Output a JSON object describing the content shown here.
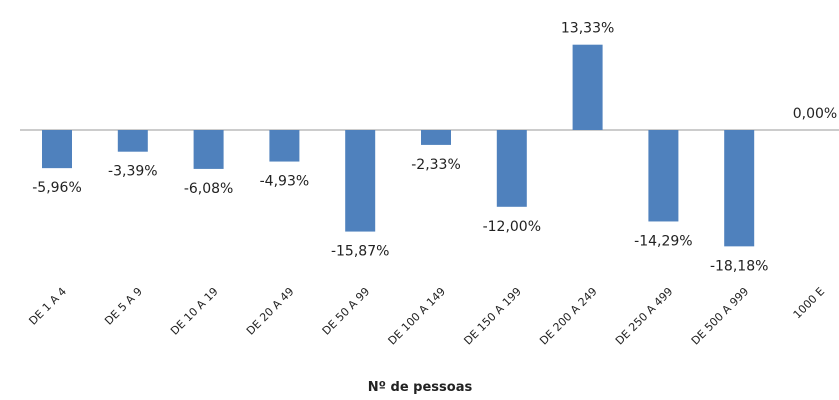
{
  "chart_data": {
    "type": "bar",
    "categories": [
      "DE 1 A 4",
      "DE 5 A 9",
      "DE 10 A 19",
      "DE 20 A 49",
      "DE 50 A 99",
      "DE 100 A 149",
      "DE 150 A 199",
      "DE 200 A 249",
      "DE 250 A 499",
      "DE 500 A 999",
      "1000 E"
    ],
    "values": [
      -5.96,
      -3.39,
      -6.08,
      -4.93,
      -15.87,
      -2.33,
      -12.0,
      13.33,
      -14.29,
      -18.18,
      0.0
    ],
    "value_labels": [
      "-5,96%",
      "-3,39%",
      "-6,08%",
      "-4,93%",
      "-15,87%",
      "-2,33%",
      "-12,00%",
      "13,33%",
      "-14,29%",
      "-18,18%",
      "0,00%"
    ],
    "color": "#4f81bd",
    "x_label": "Nº de pessoas"
  }
}
